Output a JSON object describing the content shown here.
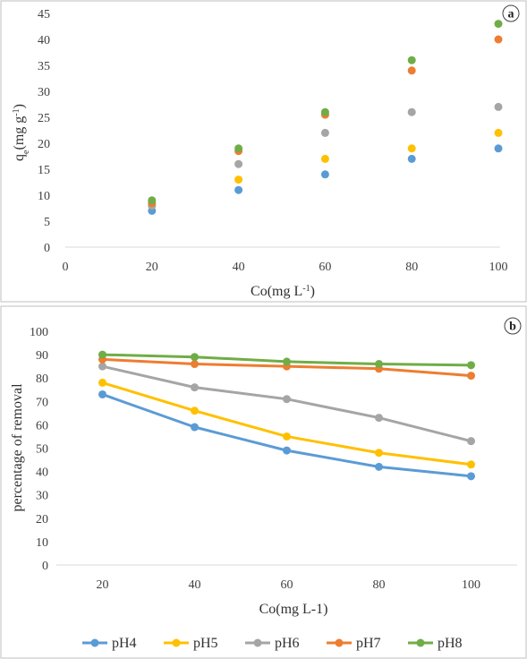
{
  "colors": {
    "pH4": "#5b9bd5",
    "pH5": "#ffc000",
    "pH6": "#a5a5a5",
    "pH7": "#ed7d31",
    "pH8": "#70ad47"
  },
  "legend": [
    "pH4",
    "pH5",
    "pH6",
    "pH7",
    "pH8"
  ],
  "chart_data": [
    {
      "type": "scatter",
      "panel_label": "a",
      "xlabel": "Co(mg L",
      "xlabel_sup": "-1",
      "xlabel_end": ")",
      "ylabel_q": "q",
      "ylabel_sub": "e",
      "ylabel_rest": "(mg g",
      "ylabel_sup": "-1",
      "ylabel_end": ")",
      "xlim": [
        0,
        100
      ],
      "ylim": [
        0,
        45
      ],
      "xticks": [
        "0",
        "20",
        "40",
        "60",
        "80",
        "100"
      ],
      "yticks": [
        "0",
        "5",
        "10",
        "15",
        "20",
        "25",
        "30",
        "35",
        "40",
        "45"
      ],
      "x": [
        20,
        40,
        60,
        80,
        100
      ],
      "series": [
        {
          "name": "pH4",
          "values": [
            7,
            11,
            14,
            17,
            19
          ]
        },
        {
          "name": "pH5",
          "values": [
            8,
            13,
            17,
            19,
            22
          ]
        },
        {
          "name": "pH6",
          "values": [
            8,
            16,
            22,
            26,
            27
          ]
        },
        {
          "name": "pH7",
          "values": [
            8.5,
            18.5,
            25.5,
            34,
            40
          ]
        },
        {
          "name": "pH8",
          "values": [
            9,
            19,
            26,
            36,
            43
          ]
        }
      ]
    },
    {
      "type": "line",
      "panel_label": "b",
      "xlabel": "Co(mg L-1)",
      "ylabel": "percentage of removal",
      "ylim": [
        0,
        100
      ],
      "categories": [
        "20",
        "40",
        "60",
        "80",
        "100"
      ],
      "yticks": [
        "0",
        "10",
        "20",
        "30",
        "40",
        "50",
        "60",
        "70",
        "80",
        "90",
        "100"
      ],
      "series": [
        {
          "name": "pH4",
          "values": [
            73,
            59,
            49,
            42,
            38
          ]
        },
        {
          "name": "pH5",
          "values": [
            78,
            66,
            55,
            48,
            43
          ]
        },
        {
          "name": "pH6",
          "values": [
            85,
            76,
            71,
            63,
            53
          ]
        },
        {
          "name": "pH7",
          "values": [
            88,
            86,
            85,
            84,
            81
          ]
        },
        {
          "name": "pH8",
          "values": [
            90,
            89,
            87,
            86,
            85.5
          ]
        }
      ]
    }
  ]
}
